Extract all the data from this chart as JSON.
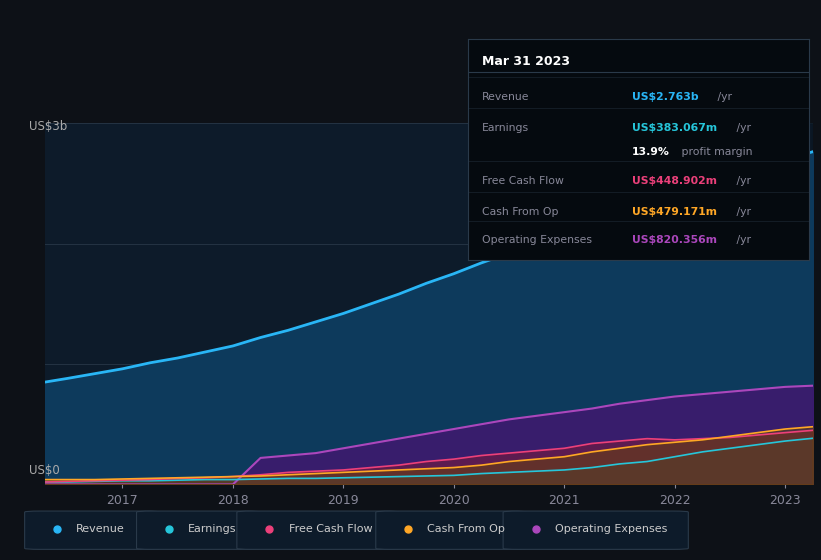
{
  "background_color": "#0d1117",
  "plot_bg_color": "#0d1b2a",
  "years": [
    2016.3,
    2016.5,
    2016.75,
    2017.0,
    2017.25,
    2017.5,
    2017.75,
    2018.0,
    2018.25,
    2018.5,
    2018.75,
    2019.0,
    2019.25,
    2019.5,
    2019.75,
    2020.0,
    2020.25,
    2020.5,
    2020.75,
    2021.0,
    2021.25,
    2021.5,
    2021.75,
    2022.0,
    2022.25,
    2022.5,
    2022.75,
    2023.0,
    2023.25
  ],
  "revenue": [
    0.85,
    0.88,
    0.92,
    0.96,
    1.01,
    1.05,
    1.1,
    1.15,
    1.22,
    1.28,
    1.35,
    1.42,
    1.5,
    1.58,
    1.67,
    1.75,
    1.84,
    1.92,
    2.0,
    2.08,
    2.15,
    2.22,
    2.3,
    2.38,
    2.48,
    2.55,
    2.62,
    2.7,
    2.763
  ],
  "earnings": [
    0.02,
    0.02,
    0.025,
    0.03,
    0.03,
    0.035,
    0.04,
    0.04,
    0.045,
    0.05,
    0.05,
    0.055,
    0.06,
    0.065,
    0.07,
    0.075,
    0.09,
    0.1,
    0.11,
    0.12,
    0.14,
    0.17,
    0.19,
    0.23,
    0.27,
    0.3,
    0.33,
    0.36,
    0.383
  ],
  "free_cash_flow": [
    0.02,
    0.025,
    0.03,
    0.035,
    0.04,
    0.05,
    0.055,
    0.065,
    0.08,
    0.1,
    0.11,
    0.12,
    0.14,
    0.16,
    0.19,
    0.21,
    0.24,
    0.26,
    0.28,
    0.3,
    0.34,
    0.36,
    0.38,
    0.37,
    0.38,
    0.39,
    0.41,
    0.43,
    0.449
  ],
  "cash_from_op": [
    0.04,
    0.04,
    0.04,
    0.045,
    0.05,
    0.055,
    0.06,
    0.065,
    0.07,
    0.08,
    0.09,
    0.1,
    0.11,
    0.12,
    0.13,
    0.14,
    0.16,
    0.19,
    0.21,
    0.23,
    0.27,
    0.3,
    0.33,
    0.35,
    0.37,
    0.4,
    0.43,
    0.46,
    0.479
  ],
  "op_expenses": [
    0.0,
    0.0,
    0.0,
    0.0,
    0.0,
    0.0,
    0.0,
    0.0,
    0.22,
    0.24,
    0.26,
    0.3,
    0.34,
    0.38,
    0.42,
    0.46,
    0.5,
    0.54,
    0.57,
    0.6,
    0.63,
    0.67,
    0.7,
    0.73,
    0.75,
    0.77,
    0.79,
    0.81,
    0.82
  ],
  "revenue_color": "#29b6f6",
  "earnings_color": "#26c6da",
  "free_cash_flow_color": "#ec407a",
  "cash_from_op_color": "#ffa726",
  "op_expenses_color": "#ab47bc",
  "revenue_fill": "#0d3a5c",
  "op_expenses_fill": "#3d1a6e",
  "earnings_fill": "#0d5a5c",
  "fcf_fill": "#7a1a3a",
  "cfop_fill": "#6a4a00",
  "ylabel": "US$3b",
  "ylabel0": "US$0",
  "xticks": [
    2017,
    2018,
    2019,
    2020,
    2021,
    2022,
    2023
  ],
  "ylim": [
    0,
    3.0
  ],
  "legend_labels": [
    "Revenue",
    "Earnings",
    "Free Cash Flow",
    "Cash From Op",
    "Operating Expenses"
  ],
  "legend_colors": [
    "#29b6f6",
    "#26c6da",
    "#ec407a",
    "#ffa726",
    "#ab47bc"
  ],
  "tooltip_rows": [
    {
      "label": "Revenue",
      "value": "US$2.763b",
      "suffix": " /yr",
      "value_color": "#29b6f6"
    },
    {
      "label": "Earnings",
      "value": "US$383.067m",
      "suffix": " /yr",
      "value_color": "#26c6da"
    },
    {
      "label": "",
      "value": "13.9%",
      "suffix": " profit margin",
      "value_color": "#ffffff"
    },
    {
      "label": "Free Cash Flow",
      "value": "US$448.902m",
      "suffix": " /yr",
      "value_color": "#ec407a"
    },
    {
      "label": "Cash From Op",
      "value": "US$479.171m",
      "suffix": " /yr",
      "value_color": "#ffa726"
    },
    {
      "label": "Operating Expenses",
      "value": "US$820.356m",
      "suffix": " /yr",
      "value_color": "#ab47bc"
    }
  ]
}
